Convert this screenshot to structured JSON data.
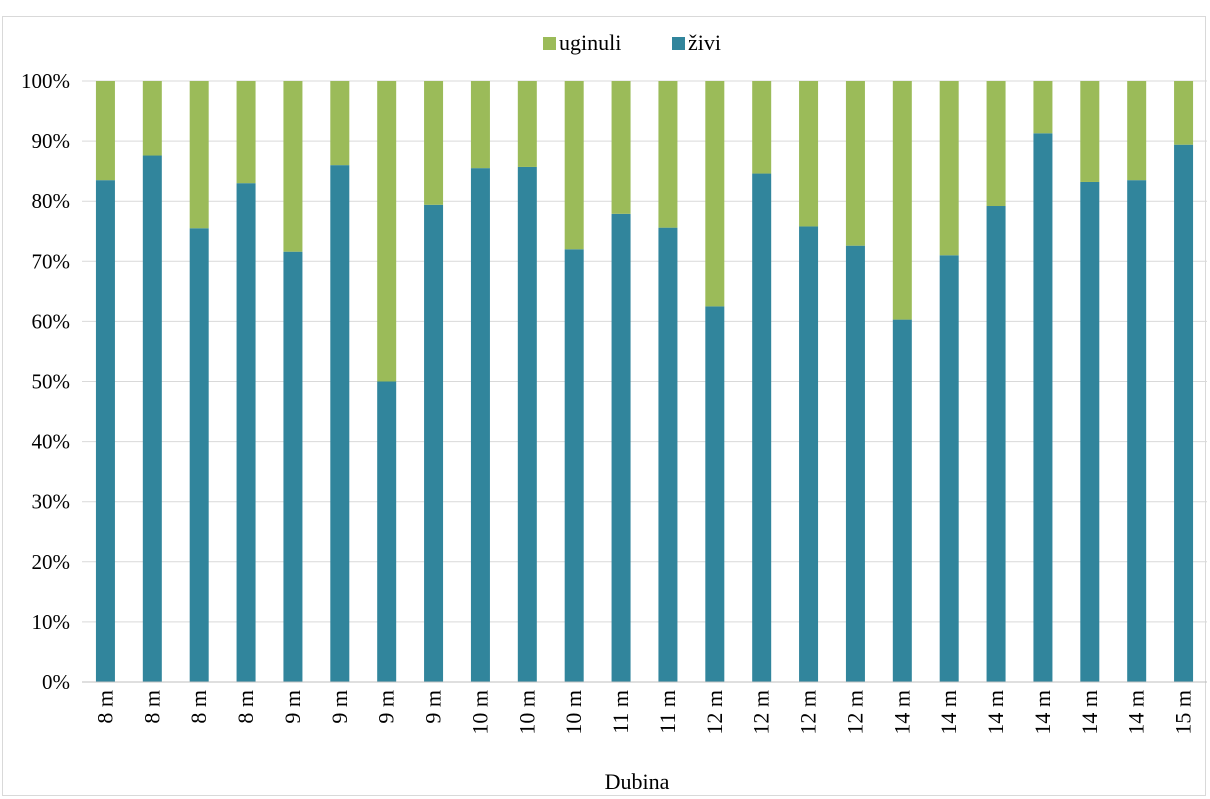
{
  "chart_data": {
    "type": "bar",
    "stacked": true,
    "normalized": true,
    "categories": [
      "8 m",
      "8 m",
      "8 m",
      "8 m",
      "9 m",
      "9 m",
      "9 m",
      "9 m",
      "10 m",
      "10 m",
      "10 m",
      "11 m",
      "11 m",
      "12 m",
      "12 m",
      "12 m",
      "12 m",
      "14 m",
      "14 m",
      "14 m",
      "14 m",
      "14 m",
      "14 m",
      "15 m"
    ],
    "series": [
      {
        "name": "živi",
        "color": "#31859c",
        "values": [
          83.5,
          87.6,
          75.5,
          83.0,
          71.6,
          86.0,
          50.0,
          79.4,
          85.5,
          85.7,
          72.0,
          77.9,
          75.6,
          62.5,
          84.6,
          75.8,
          72.6,
          60.3,
          71.0,
          79.2,
          91.3,
          83.2,
          83.5,
          89.4
        ]
      },
      {
        "name": "uginuli",
        "color": "#9bbb59",
        "values": [
          16.5,
          12.4,
          24.5,
          17.0,
          28.4,
          14.0,
          50.0,
          20.6,
          14.5,
          14.3,
          28.0,
          22.1,
          24.4,
          37.5,
          15.4,
          24.2,
          27.4,
          39.7,
          29.0,
          20.8,
          8.7,
          16.8,
          16.5,
          10.6
        ]
      }
    ],
    "legend": [
      "uginuli",
      "živi"
    ],
    "legend_position": "top",
    "title": "",
    "xlabel": "Dubina",
    "ylabel": "",
    "ylim": [
      0,
      100
    ],
    "yticks": [
      "0%",
      "10%",
      "20%",
      "30%",
      "40%",
      "50%",
      "60%",
      "70%",
      "80%",
      "90%",
      "100%"
    ],
    "grid": true
  }
}
